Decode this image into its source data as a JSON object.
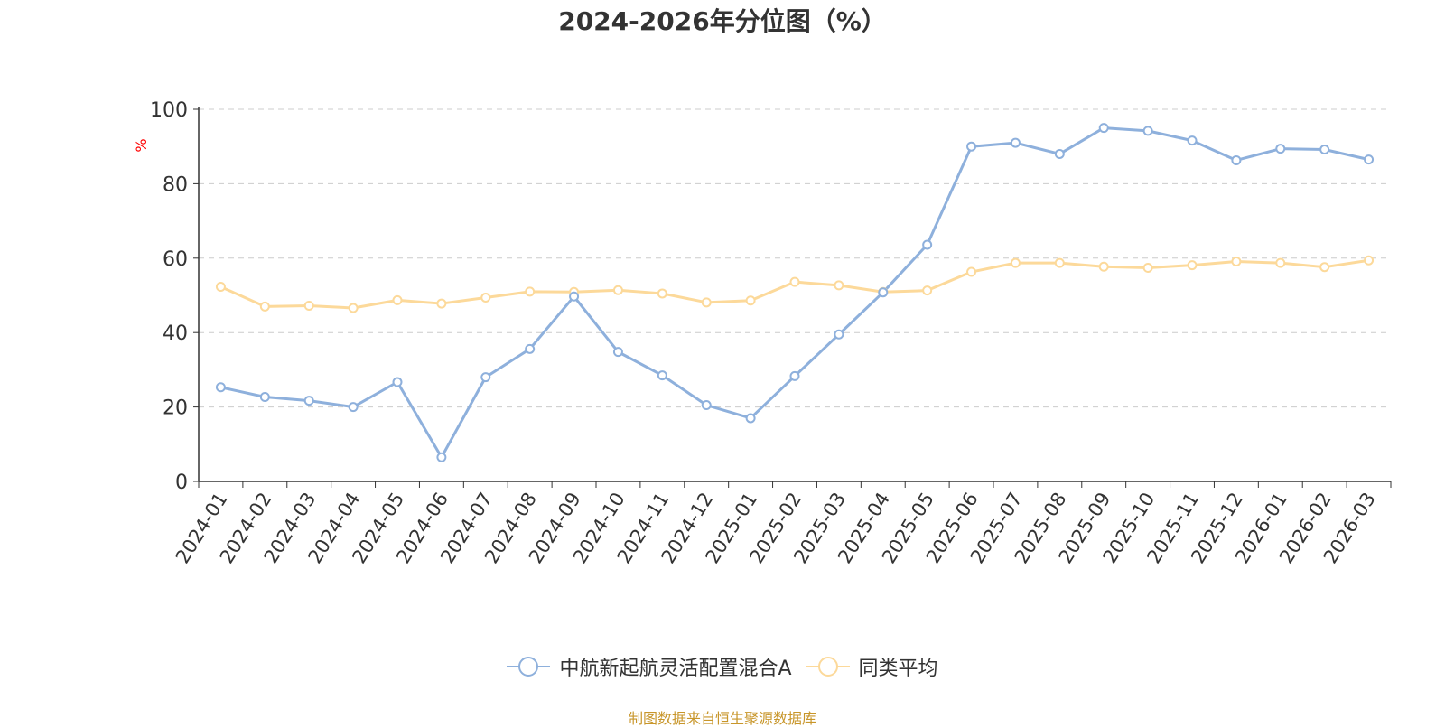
{
  "title": "2024-2026年分位图（%）",
  "source": "制图数据来自恒生聚源数据库",
  "colors": {
    "fund": "#8eb0dc",
    "avg": "#fcd99a",
    "axis": "#333333",
    "grid": "#cccccc",
    "ylabel": "#ff0000"
  },
  "chart_data": {
    "type": "line",
    "title": "2024-2026年分位图（%）",
    "ylabel": "%",
    "ylim": [
      0,
      100
    ],
    "yticks": [
      0,
      20,
      40,
      60,
      80,
      100
    ],
    "grid": true,
    "legend_position": "bottom",
    "categories": [
      "2024-01",
      "2024-02",
      "2024-03",
      "2024-04",
      "2024-05",
      "2024-06",
      "2024-07",
      "2024-08",
      "2024-09",
      "2024-10",
      "2024-11",
      "2024-12",
      "2025-01",
      "2025-02",
      "2025-03",
      "2025-04",
      "2025-05",
      "2025-06",
      "2025-07",
      "2025-08",
      "2025-09",
      "2025-10",
      "2025-11",
      "2025-12",
      "2026-01",
      "2026-02",
      "2026-03"
    ],
    "series": [
      {
        "name": "中航新起航灵活配置混合A",
        "color": "#8eb0dc",
        "values": [
          25.3,
          22.7,
          21.7,
          20.0,
          26.7,
          6.5,
          28.0,
          35.6,
          49.7,
          34.8,
          28.5,
          20.5,
          17.0,
          28.3,
          39.5,
          50.8,
          63.6,
          90.0,
          91.0,
          88.0,
          95.0,
          94.2,
          91.6,
          86.3,
          89.4,
          89.2,
          86.5
        ]
      },
      {
        "name": "同类平均",
        "color": "#fcd99a",
        "values": [
          52.3,
          47.0,
          47.2,
          46.6,
          48.7,
          47.8,
          49.4,
          51.0,
          50.9,
          51.4,
          50.5,
          48.1,
          48.6,
          53.6,
          52.7,
          50.9,
          51.3,
          56.3,
          58.7,
          58.7,
          57.7,
          57.4,
          58.1,
          59.1,
          58.7,
          57.6,
          59.4
        ]
      }
    ]
  }
}
